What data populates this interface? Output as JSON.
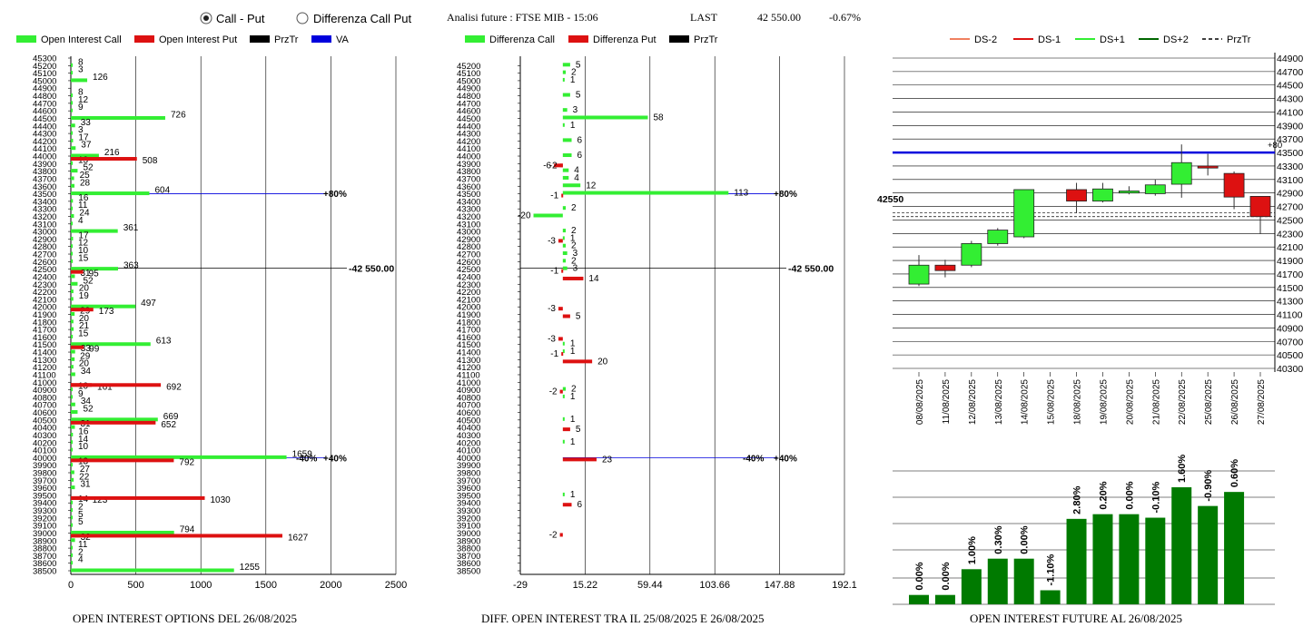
{
  "header": {
    "radio_call_put": "Call - Put",
    "radio_diff": "Differenza Call Put",
    "radio_selected": "call_put",
    "analisi_label": "Analisi future : FTSE MIB - 15:06",
    "last_label": "LAST",
    "last_value": "42 550.00",
    "last_change": "-0.67%"
  },
  "colors": {
    "call": "#33ee33",
    "put": "#dd1111",
    "prztr": "#000000",
    "va": "#0000dd",
    "candle_up": "#33ee33",
    "candle_down": "#dd1111",
    "oi_bar": "#007a00"
  },
  "chart_data": [
    {
      "type": "bar",
      "orientation": "horizontal",
      "title": "OPEN INTEREST OPTIONS DEL 26/08/2025",
      "legend": [
        "Open Interest Call",
        "Open Interest Put",
        "PrzTr",
        "VA"
      ],
      "xlim": [
        0,
        2500
      ],
      "x_ticks": [
        "0",
        "500",
        "1000",
        "1500",
        "2000",
        "2500"
      ],
      "strikes": [
        45300,
        45200,
        45100,
        45000,
        44900,
        44800,
        44700,
        44600,
        44500,
        44400,
        44300,
        44200,
        44100,
        44000,
        43900,
        43800,
        43700,
        43600,
        43500,
        43400,
        43300,
        43200,
        43100,
        43000,
        42900,
        42800,
        42700,
        42600,
        42500,
        42400,
        42300,
        42200,
        42100,
        42000,
        41900,
        41800,
        41700,
        41600,
        41500,
        41400,
        41300,
        41200,
        41100,
        41000,
        40900,
        40800,
        40700,
        40600,
        40500,
        40400,
        40300,
        40200,
        40100,
        40000,
        39900,
        39800,
        39700,
        39600,
        39500,
        39400,
        39300,
        39200,
        39100,
        39000,
        38900,
        38800,
        38700,
        38600,
        38500
      ],
      "call_labeled": [
        {
          "strike": 45200,
          "value": 8
        },
        {
          "strike": 45100,
          "value": 3
        },
        {
          "strike": 45000,
          "value": 126
        },
        {
          "strike": 44800,
          "value": 8
        },
        {
          "strike": 44700,
          "value": 12
        },
        {
          "strike": 44600,
          "value": 9
        },
        {
          "strike": 44500,
          "value": 726
        },
        {
          "strike": 44400,
          "value": 33
        },
        {
          "strike": 44300,
          "value": 3
        },
        {
          "strike": 44200,
          "value": 17
        },
        {
          "strike": 44100,
          "value": 37
        },
        {
          "strike": 44000,
          "value": 216
        },
        {
          "strike": 43900,
          "value": 13
        },
        {
          "strike": 43800,
          "value": 52
        },
        {
          "strike": 43700,
          "value": 25
        },
        {
          "strike": 43600,
          "value": 28
        },
        {
          "strike": 43500,
          "value": 604
        },
        {
          "strike": 43400,
          "value": 16
        },
        {
          "strike": 43300,
          "value": 11
        },
        {
          "strike": 43200,
          "value": 24
        },
        {
          "strike": 43100,
          "value": 4
        },
        {
          "strike": 43000,
          "value": 361
        },
        {
          "strike": 42900,
          "value": 17
        },
        {
          "strike": 42800,
          "value": 12
        },
        {
          "strike": 42700,
          "value": 10
        },
        {
          "strike": 42600,
          "value": 15
        },
        {
          "strike": 42500,
          "value": 363
        },
        {
          "strike": 42400,
          "value": 31
        },
        {
          "strike": 42300,
          "value": 52
        },
        {
          "strike": 42200,
          "value": 20
        },
        {
          "strike": 42100,
          "value": 19
        },
        {
          "strike": 42000,
          "value": 497
        },
        {
          "strike": 41900,
          "value": 29
        },
        {
          "strike": 41800,
          "value": 20
        },
        {
          "strike": 41700,
          "value": 21
        },
        {
          "strike": 41600,
          "value": 15
        },
        {
          "strike": 41500,
          "value": 613
        },
        {
          "strike": 41400,
          "value": 33
        },
        {
          "strike": 41300,
          "value": 29
        },
        {
          "strike": 41200,
          "value": 20
        },
        {
          "strike": 41100,
          "value": 34
        },
        {
          "strike": 40900,
          "value": 10
        },
        {
          "strike": 40800,
          "value": 9
        },
        {
          "strike": 40700,
          "value": 34
        },
        {
          "strike": 40600,
          "value": 52
        },
        {
          "strike": 40500,
          "value": 669
        },
        {
          "strike": 40400,
          "value": 31
        },
        {
          "strike": 40300,
          "value": 16
        },
        {
          "strike": 40200,
          "value": 14
        },
        {
          "strike": 40100,
          "value": 10
        },
        {
          "strike": 40000,
          "value": 1659
        },
        {
          "strike": 39900,
          "value": 13
        },
        {
          "strike": 39800,
          "value": 27
        },
        {
          "strike": 39700,
          "value": 22
        },
        {
          "strike": 39600,
          "value": 31
        },
        {
          "strike": 39400,
          "value": 14
        },
        {
          "strike": 39300,
          "value": 2
        },
        {
          "strike": 39200,
          "value": 5
        },
        {
          "strike": 39100,
          "value": 5
        },
        {
          "strike": 39000,
          "value": 794
        },
        {
          "strike": 38900,
          "value": 32
        },
        {
          "strike": 38800,
          "value": 11
        },
        {
          "strike": 38700,
          "value": 2
        },
        {
          "strike": 38600,
          "value": 4
        },
        {
          "strike": 38500,
          "value": 1255
        }
      ],
      "put_labeled": [
        {
          "strike": 44000,
          "value": 508
        },
        {
          "strike": 42500,
          "value": 95
        },
        {
          "strike": 42000,
          "value": 173
        },
        {
          "strike": 41500,
          "value": 99
        },
        {
          "strike": 41000,
          "value": 161
        },
        {
          "strike": 41000,
          "value": 692
        },
        {
          "strike": 40500,
          "value": 652
        },
        {
          "strike": 40000,
          "value": 792
        },
        {
          "strike": 39500,
          "value": 123
        },
        {
          "strike": 39500,
          "value": 1030
        },
        {
          "strike": 39000,
          "value": 1627
        }
      ],
      "annotations": [
        {
          "strike": 43500,
          "text": "+80%"
        },
        {
          "strike": 42500,
          "text": "-42 550.00"
        },
        {
          "strike": 40000,
          "text": "-40%"
        },
        {
          "strike": 40000,
          "text": "+40%"
        }
      ]
    },
    {
      "type": "bar",
      "orientation": "horizontal",
      "title": "DIFF. OPEN INTEREST TRA IL 25/08/2025 E 26/08/2025",
      "legend": [
        "Differenza Call",
        "Differenza Put",
        "PrzTr"
      ],
      "xlim": [
        -29,
        192.1
      ],
      "x_ticks": [
        "-29",
        "15.22",
        "59.44",
        "103.66",
        "147.88",
        "192.1"
      ],
      "strikes": [
        45200,
        45100,
        45000,
        44900,
        44800,
        44700,
        44600,
        44500,
        44400,
        44300,
        44200,
        44100,
        44000,
        43900,
        43800,
        43700,
        43600,
        43500,
        43400,
        43300,
        43200,
        43100,
        43000,
        42900,
        42800,
        42700,
        42600,
        42500,
        42400,
        42300,
        42200,
        42100,
        42000,
        41900,
        41800,
        41700,
        41600,
        41500,
        41400,
        41300,
        41200,
        41100,
        41000,
        40900,
        40800,
        40700,
        40600,
        40500,
        40400,
        40300,
        40200,
        40100,
        40000,
        39900,
        39800,
        39700,
        39600,
        39500,
        39400,
        39300,
        39200,
        39100,
        39000,
        38900,
        38800,
        38700,
        38600,
        38500
      ],
      "call_diff": [
        {
          "strike": 45200,
          "value": 5
        },
        {
          "strike": 45100,
          "value": 2
        },
        {
          "strike": 45000,
          "value": 1
        },
        {
          "strike": 44800,
          "value": 5
        },
        {
          "strike": 44600,
          "value": 3
        },
        {
          "strike": 44500,
          "value": 58
        },
        {
          "strike": 44400,
          "value": 1
        },
        {
          "strike": 44200,
          "value": 6
        },
        {
          "strike": 44000,
          "value": 6
        },
        {
          "strike": 43800,
          "value": 4
        },
        {
          "strike": 43700,
          "value": 4
        },
        {
          "strike": 43600,
          "value": 12
        },
        {
          "strike": 43500,
          "value": 113
        },
        {
          "strike": 43300,
          "value": 2
        },
        {
          "strike": 43200,
          "value": -20
        },
        {
          "strike": 43000,
          "value": 2
        },
        {
          "strike": 42900,
          "value": 1
        },
        {
          "strike": 42800,
          "value": 2
        },
        {
          "strike": 42700,
          "value": 3
        },
        {
          "strike": 42600,
          "value": 2
        },
        {
          "strike": 42500,
          "value": 3
        },
        {
          "strike": 41500,
          "value": 1
        },
        {
          "strike": 41400,
          "value": 1
        },
        {
          "strike": 40900,
          "value": 2
        },
        {
          "strike": 40800,
          "value": 1
        },
        {
          "strike": 40500,
          "value": 1
        },
        {
          "strike": 40200,
          "value": 1
        },
        {
          "strike": 39500,
          "value": 1
        }
      ],
      "put_diff": [
        {
          "strike": 43900,
          "value": -6
        },
        {
          "strike": 43900,
          "value": -2
        },
        {
          "strike": 43500,
          "value": -1
        },
        {
          "strike": 42900,
          "value": -3
        },
        {
          "strike": 42500,
          "value": -1
        },
        {
          "strike": 42400,
          "value": 14
        },
        {
          "strike": 42000,
          "value": -3
        },
        {
          "strike": 41900,
          "value": 5
        },
        {
          "strike": 41600,
          "value": -3
        },
        {
          "strike": 41400,
          "value": -1
        },
        {
          "strike": 41300,
          "value": 20
        },
        {
          "strike": 40900,
          "value": -2
        },
        {
          "strike": 40400,
          "value": 5
        },
        {
          "strike": 40000,
          "value": 23
        },
        {
          "strike": 39400,
          "value": 6
        },
        {
          "strike": 39000,
          "value": -2
        }
      ],
      "annotations": [
        {
          "strike": 43500,
          "text": "+80%"
        },
        {
          "strike": 42500,
          "text": "-42 550.00"
        },
        {
          "strike": 40000,
          "text": "-40%"
        },
        {
          "strike": 40000,
          "text": "+40%"
        }
      ]
    },
    {
      "type": "candlestick",
      "legend": [
        "DS-2",
        "DS-1",
        "DS+1",
        "DS+2",
        "PrzTr"
      ],
      "ylim": [
        40300,
        45000
      ],
      "y_ticks": [
        "44900",
        "44700",
        "44500",
        "44300",
        "44100",
        "43900",
        "43700",
        "43500",
        "43300",
        "43100",
        "42900",
        "42700",
        "42500",
        "42300",
        "42100",
        "41900",
        "41700",
        "41500",
        "41300",
        "41100",
        "40900",
        "40700",
        "40500",
        "40300"
      ],
      "right_label_extra": "+80",
      "last_label": "42550",
      "hline_va": 43500,
      "dates": [
        "08/08/2025",
        "11/08/2025",
        "12/08/2025",
        "13/08/2025",
        "14/08/2025",
        "15/08/2025",
        "18/08/2025",
        "19/08/2025",
        "20/08/2025",
        "21/08/2025",
        "22/08/2025",
        "25/08/2025",
        "26/08/2025",
        "27/08/2025"
      ],
      "candles": [
        {
          "date": "08/08/2025",
          "open": 41550,
          "high": 41980,
          "low": 41520,
          "close": 41830
        },
        {
          "date": "11/08/2025",
          "open": 41830,
          "high": 41910,
          "low": 41650,
          "close": 41750
        },
        {
          "date": "12/08/2025",
          "open": 41830,
          "high": 42190,
          "low": 41800,
          "close": 42150
        },
        {
          "date": "13/08/2025",
          "open": 42150,
          "high": 42380,
          "low": 42120,
          "close": 42350
        },
        {
          "date": "14/08/2025",
          "open": 42250,
          "high": 42950,
          "low": 42230,
          "close": 42950
        },
        {
          "date": "15/08/2025",
          "empty": true
        },
        {
          "date": "18/08/2025",
          "open": 42950,
          "high": 43050,
          "low": 42600,
          "close": 42780
        },
        {
          "date": "19/08/2025",
          "open": 42780,
          "high": 43050,
          "low": 42760,
          "close": 42960
        },
        {
          "date": "20/08/2025",
          "open": 42900,
          "high": 43000,
          "low": 42880,
          "close": 42930
        },
        {
          "date": "21/08/2025",
          "open": 42890,
          "high": 43100,
          "low": 42860,
          "close": 43020
        },
        {
          "date": "22/08/2025",
          "open": 43030,
          "high": 43620,
          "low": 42830,
          "close": 43350
        },
        {
          "date": "25/08/2025",
          "open": 43300,
          "high": 43480,
          "low": 43160,
          "close": 43270
        },
        {
          "date": "26/08/2025",
          "open": 43190,
          "high": 43220,
          "low": 42660,
          "close": 42840
        },
        {
          "date": "27/08/2025",
          "open": 42850,
          "high": 42850,
          "low": 42290,
          "close": 42550
        }
      ]
    },
    {
      "type": "bar",
      "title": "OPEN INTEREST FUTURE AL 26/08/2025",
      "categories": [
        "08/08/2025",
        "11/08/2025",
        "12/08/2025",
        "13/08/2025",
        "14/08/2025",
        "15/08/2025",
        "18/08/2025",
        "19/08/2025",
        "20/08/2025",
        "21/08/2025",
        "22/08/2025",
        "25/08/2025",
        "26/08/2025"
      ],
      "values": [
        0.0,
        0.0,
        1.0,
        0.3,
        0.0,
        -1.1,
        2.8,
        0.2,
        0.0,
        -0.1,
        1.6,
        -0.9,
        0.6
      ],
      "labels": [
        "0.00%",
        "0.00%",
        "1.00%",
        "0.30%",
        "0.00%",
        "-1.10%",
        "2.80%",
        "0.20%",
        "0.00%",
        "-0.10%",
        "1.60%",
        "-0.90%",
        "0.60%"
      ],
      "levels": [
        0.08,
        0.08,
        0.3,
        0.39,
        0.39,
        0.12,
        0.73,
        0.77,
        0.77,
        0.74,
        1.0,
        0.84,
        0.96
      ]
    }
  ]
}
